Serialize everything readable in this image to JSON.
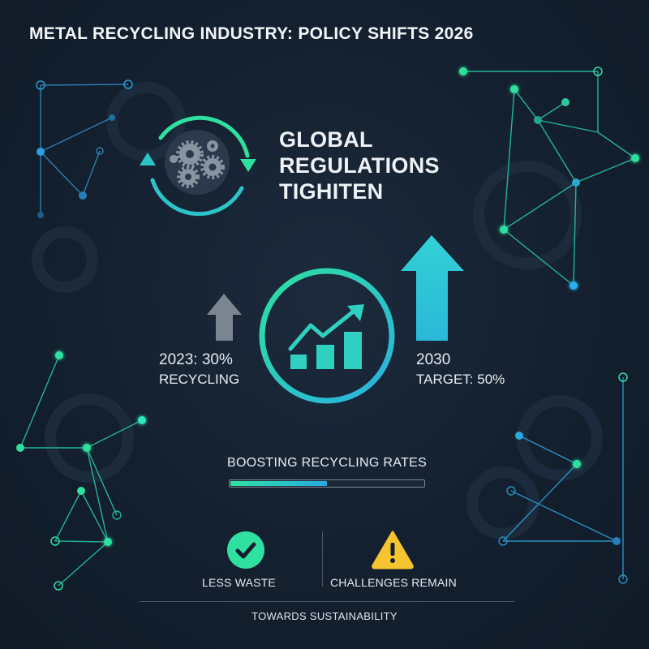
{
  "header": {
    "title": "METAL RECYCLING INDUSTRY: POLICY SHIFTS 2026"
  },
  "headline": {
    "lines": [
      "GLOBAL",
      "REGULATIONS",
      "TIGHITEN"
    ]
  },
  "stats": {
    "current": {
      "line1": "2023: 30%",
      "line2": "RECYCLING"
    },
    "target": {
      "line1": "2030",
      "line2": "TARGET: 50%"
    }
  },
  "progress": {
    "label": "BOOSTING RECYCLING RATES",
    "fraction": 0.5
  },
  "outcomes": {
    "positive": {
      "label": "LESS WASTE",
      "icon": "checkmark-icon"
    },
    "negative": {
      "label": "CHALLENGES REMAIN",
      "icon": "warning-icon"
    }
  },
  "footer": {
    "text": "TOWARDS SUSTAINABILITY"
  },
  "colors": {
    "background": "#14202f",
    "accent_green": "#2fe0a0",
    "accent_cyan": "#2ec6d6",
    "warning_yellow": "#f5c531",
    "muted_arrow": "#7a8591"
  }
}
